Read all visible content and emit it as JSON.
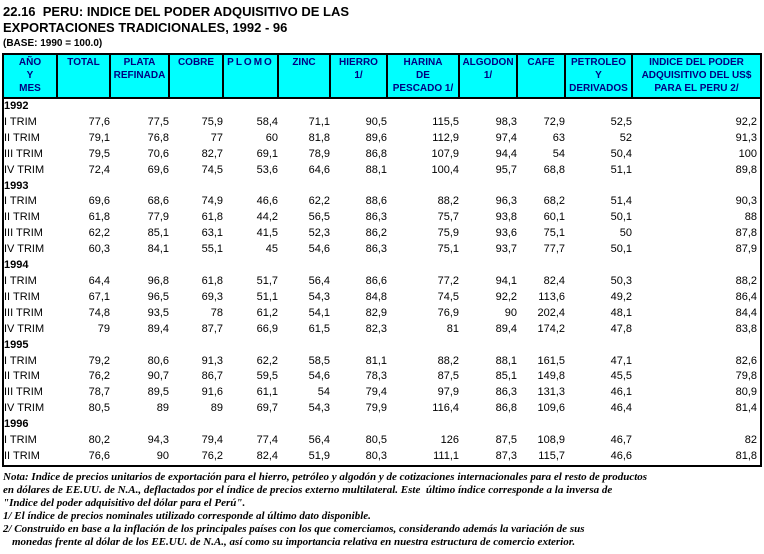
{
  "title": {
    "line1": "22.16  PERU: INDICE DEL PODER ADQUISITIVO DE LAS",
    "line2": "EXPORTACIONES TRADICIONALES, 1992 - 96",
    "base": "(BASE: 1990 = 100.0)"
  },
  "colors": {
    "header_bg": "#00ffff",
    "header_text": "#000080",
    "border": "#000000"
  },
  "table": {
    "columns": [
      {
        "label": "AÑO\nY\nMES"
      },
      {
        "label": "TOTAL"
      },
      {
        "label": "PLATA\nREFINADA"
      },
      {
        "label": "COBRE"
      },
      {
        "label": "PLOMO"
      },
      {
        "label": "ZINC"
      },
      {
        "label": "HIERRO\n1/"
      },
      {
        "label": "HARINA\nDE\nPESCADO 1/"
      },
      {
        "label": "ALGODON\n1/"
      },
      {
        "label": "CAFE"
      },
      {
        "label": "PETROLEO\nY\nDERIVADOS"
      },
      {
        "label": "INDICE DEL PODER\nADQUISITIVO DEL US$\nPARA EL PERU 2/"
      }
    ],
    "rows": [
      {
        "type": "year",
        "label": "1992"
      },
      {
        "type": "data",
        "label": "I TRIM",
        "values": [
          "77,6",
          "77,5",
          "75,9",
          "58,4",
          "71,1",
          "90,5",
          "115,5",
          "98,3",
          "72,9",
          "52,5",
          "92,2"
        ]
      },
      {
        "type": "data",
        "label": "II TRIM",
        "values": [
          "79,1",
          "76,8",
          "77",
          "60",
          "81,8",
          "89,6",
          "112,9",
          "97,4",
          "63",
          "52",
          "91,3"
        ]
      },
      {
        "type": "data",
        "label": "III TRIM",
        "values": [
          "79,5",
          "70,6",
          "82,7",
          "69,1",
          "78,9",
          "86,8",
          "107,9",
          "94,4",
          "54",
          "50,4",
          "100"
        ]
      },
      {
        "type": "data",
        "label": "IV TRIM",
        "values": [
          "72,4",
          "69,6",
          "74,5",
          "53,6",
          "64,6",
          "88,1",
          "100,4",
          "95,7",
          "68,8",
          "51,1",
          "89,8"
        ]
      },
      {
        "type": "year",
        "label": "1993"
      },
      {
        "type": "data",
        "label": "I TRIM",
        "values": [
          "69,6",
          "68,6",
          "74,9",
          "46,6",
          "62,2",
          "88,6",
          "88,2",
          "96,3",
          "68,2",
          "51,4",
          "90,3"
        ]
      },
      {
        "type": "data",
        "label": "II TRIM",
        "values": [
          "61,8",
          "77,9",
          "61,8",
          "44,2",
          "56,5",
          "86,3",
          "75,7",
          "93,8",
          "60,1",
          "50,1",
          "88"
        ]
      },
      {
        "type": "data",
        "label": "III TRIM",
        "values": [
          "62,2",
          "85,1",
          "63,1",
          "41,5",
          "52,3",
          "86,2",
          "75,9",
          "93,6",
          "75,1",
          "50",
          "87,8"
        ]
      },
      {
        "type": "data",
        "label": "IV TRIM",
        "values": [
          "60,3",
          "84,1",
          "55,1",
          "45",
          "54,6",
          "86,3",
          "75,1",
          "93,7",
          "77,7",
          "50,1",
          "87,9"
        ]
      },
      {
        "type": "year",
        "label": "1994"
      },
      {
        "type": "data",
        "label": "I TRIM",
        "values": [
          "64,4",
          "96,8",
          "61,8",
          "51,7",
          "56,4",
          "86,6",
          "77,2",
          "94,1",
          "82,4",
          "50,3",
          "88,2"
        ]
      },
      {
        "type": "data",
        "label": "II TRIM",
        "values": [
          "67,1",
          "96,5",
          "69,3",
          "51,1",
          "54,3",
          "84,8",
          "74,5",
          "92,2",
          "113,6",
          "49,2",
          "86,4"
        ]
      },
      {
        "type": "data",
        "label": "III TRIM",
        "values": [
          "74,8",
          "93,5",
          "78",
          "61,2",
          "54,1",
          "82,9",
          "76,9",
          "90",
          "202,4",
          "48,1",
          "84,4"
        ]
      },
      {
        "type": "data",
        "label": "IV TRIM",
        "values": [
          "79",
          "89,4",
          "87,7",
          "66,9",
          "61,5",
          "82,3",
          "81",
          "89,4",
          "174,2",
          "47,8",
          "83,8"
        ]
      },
      {
        "type": "year",
        "label": "1995"
      },
      {
        "type": "data",
        "label": "I TRIM",
        "values": [
          "79,2",
          "80,6",
          "91,3",
          "62,2",
          "58,5",
          "81,1",
          "88,2",
          "88,1",
          "161,5",
          "47,1",
          "82,6"
        ]
      },
      {
        "type": "data",
        "label": "II TRIM",
        "values": [
          "76,2",
          "90,7",
          "86,7",
          "59,5",
          "54,6",
          "78,3",
          "87,5",
          "85,1",
          "149,8",
          "45,5",
          "79,8"
        ]
      },
      {
        "type": "data",
        "label": "III TRIM",
        "values": [
          "78,7",
          "89,5",
          "91,6",
          "61,1",
          "54",
          "79,4",
          "97,9",
          "86,3",
          "131,3",
          "46,1",
          "80,9"
        ]
      },
      {
        "type": "data",
        "label": "IV TRIM",
        "values": [
          "80,5",
          "89",
          "89",
          "69,7",
          "54,3",
          "79,9",
          "116,4",
          "86,8",
          "109,6",
          "46,4",
          "81,4"
        ]
      },
      {
        "type": "year",
        "label": "1996"
      },
      {
        "type": "data",
        "label": "I TRIM",
        "values": [
          "80,2",
          "94,3",
          "79,4",
          "77,4",
          "56,4",
          "80,5",
          "126",
          "87,5",
          "108,9",
          "46,7",
          "82"
        ]
      },
      {
        "type": "data",
        "label": "II TRIM",
        "values": [
          "76,6",
          "90",
          "76,2",
          "82,4",
          "51,9",
          "80,3",
          "111,1",
          "87,3",
          "115,7",
          "46,6",
          "81,8"
        ]
      }
    ]
  },
  "notes": {
    "lines": [
      "Nota: Indice de precios unitarios de exportación para el hierro, petróleo y algodón y de cotizaciones internacionales para el resto de productos",
      "en dólares de EE.UU. de N.A., deflactados por el índice de precios externo multilateral. Este  último índice corresponde a la inversa de",
      "\"Indice del poder adquisitivo del dólar para el Perú\".",
      "1/ El índice de precios nominales utilizado corresponde al último dato disponible.",
      "2/ Construido en base a la inflación de los principales países con los que comerciamos, considerando además la variación de sus",
      "monedas frente al dólar de los EE.UU. de N.A., así como su importancia relativa en nuestra estructura de comercio exterior."
    ]
  }
}
